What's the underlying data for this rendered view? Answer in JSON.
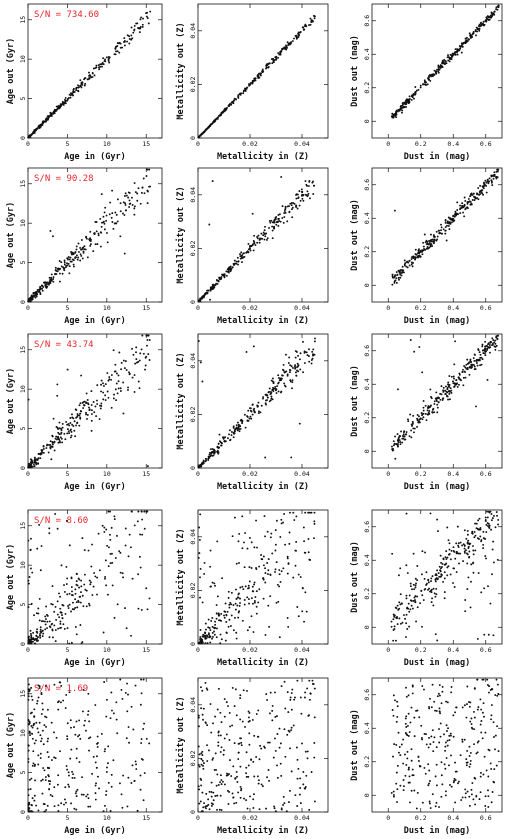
{
  "figure": {
    "rows": [
      {
        "sn_label": "S/N = 734.60",
        "noise": {
          "age": 0.1,
          "met": 0.05,
          "dust": 0.1
        },
        "outliers": 0.0
      },
      {
        "sn_label": "S/N = 90.28",
        "noise": {
          "age": 0.26,
          "met": 0.15,
          "dust": 0.17
        },
        "outliers": 0.02
      },
      {
        "sn_label": "S/N = 43.74",
        "noise": {
          "age": 0.36,
          "met": 0.22,
          "dust": 0.26
        },
        "outliers": 0.04
      },
      {
        "sn_label": "S/N = 8.60",
        "noise": {
          "age": 0.8,
          "met": 0.8,
          "dust": 0.55
        },
        "outliers": 0.25
      },
      {
        "sn_label": "S/N = 1.69",
        "noise": {
          "age": 1.0,
          "met": 1.0,
          "dust": 1.0
        },
        "outliers": 0.85
      }
    ],
    "columns": [
      {
        "key": "age",
        "xlabel": "Age in (Gyr)",
        "ylabel": "Age out (Gyr)",
        "xlim": [
          0,
          17
        ],
        "ylim": [
          0,
          17
        ],
        "xticks": [
          0,
          5,
          10,
          15
        ],
        "yticks": [
          0,
          5,
          10,
          15
        ],
        "xtick_labels": [
          "0",
          "5",
          "10",
          "15"
        ],
        "ytick_labels": [
          "0",
          "5",
          "10",
          "15"
        ]
      },
      {
        "key": "met",
        "xlabel": "Metallicity in (Z)",
        "ylabel": "Metallicity out (Z)",
        "xlim": [
          0,
          0.05
        ],
        "ylim": [
          0,
          0.05
        ],
        "xticks": [
          0,
          0.02,
          0.04
        ],
        "yticks": [
          0,
          0.02,
          0.04
        ],
        "xtick_labels": [
          "0",
          "0.02",
          "0.04"
        ],
        "ytick_labels": [
          "0",
          "0.02",
          "0.04"
        ]
      },
      {
        "key": "dust",
        "xlabel": "Dust in (mag)",
        "ylabel": "Dust out (mag)",
        "xlim": [
          -0.1,
          0.7
        ],
        "ylim": [
          -0.1,
          0.7
        ],
        "xticks": [
          0,
          0.2,
          0.4,
          0.6
        ],
        "yticks": [
          0,
          0.2,
          0.4,
          0.6
        ],
        "xtick_labels": [
          "0",
          "0.2",
          "0.4",
          "0.6"
        ],
        "ytick_labels": [
          "0",
          "0.2",
          "0.4",
          "0.6"
        ]
      }
    ]
  },
  "chart_data": [
    {
      "type": "scatter",
      "panel": "row1-age",
      "annotation": "S/N = 734.60",
      "xlabel": "Age in (Gyr)",
      "ylabel": "Age out (Gyr)",
      "xlim": [
        0,
        17
      ],
      "ylim": [
        0,
        17
      ],
      "points": 300,
      "trend": "y ≈ x, tight"
    },
    {
      "type": "scatter",
      "panel": "row1-metallicity",
      "xlabel": "Metallicity in (Z)",
      "ylabel": "Metallicity out (Z)",
      "xlim": [
        0,
        0.05
      ],
      "ylim": [
        0,
        0.05
      ],
      "points": 300,
      "trend": "y ≈ x, tight"
    },
    {
      "type": "scatter",
      "panel": "row1-dust",
      "xlabel": "Dust in (mag)",
      "ylabel": "Dust out (mag)",
      "xlim": [
        -0.1,
        0.7
      ],
      "ylim": [
        -0.1,
        0.7
      ],
      "points": 300,
      "trend": "y ≈ x, tight"
    },
    {
      "type": "scatter",
      "panel": "row2-age",
      "annotation": "S/N = 90.28",
      "xlabel": "Age in (Gyr)",
      "ylabel": "Age out (Gyr)",
      "xlim": [
        0,
        17
      ],
      "ylim": [
        0,
        17
      ],
      "points": 300,
      "trend": "y ≈ x, moderate scatter"
    },
    {
      "type": "scatter",
      "panel": "row2-metallicity",
      "xlabel": "Metallicity in (Z)",
      "ylabel": "Metallicity out (Z)",
      "xlim": [
        0,
        0.05
      ],
      "ylim": [
        0,
        0.05
      ],
      "points": 300,
      "trend": "y ≈ x, moderate scatter"
    },
    {
      "type": "scatter",
      "panel": "row2-dust",
      "xlabel": "Dust in (mag)",
      "ylabel": "Dust out (mag)",
      "xlim": [
        -0.1,
        0.7
      ],
      "ylim": [
        -0.1,
        0.7
      ],
      "points": 300,
      "trend": "y ≈ x, moderate scatter"
    },
    {
      "type": "scatter",
      "panel": "row3-age",
      "annotation": "S/N = 43.74",
      "xlabel": "Age in (Gyr)",
      "ylabel": "Age out (Gyr)",
      "xlim": [
        0,
        17
      ],
      "ylim": [
        0,
        17
      ],
      "points": 300,
      "trend": "y ≈ x, larger scatter"
    },
    {
      "type": "scatter",
      "panel": "row3-metallicity",
      "xlabel": "Metallicity in (Z)",
      "ylabel": "Metallicity out (Z)",
      "xlim": [
        0,
        0.05
      ],
      "ylim": [
        0,
        0.05
      ],
      "points": 300,
      "trend": "y ≈ x, larger scatter"
    },
    {
      "type": "scatter",
      "panel": "row3-dust",
      "xlabel": "Dust in (mag)",
      "ylabel": "Dust out (mag)",
      "xlim": [
        -0.1,
        0.7
      ],
      "ylim": [
        -0.1,
        0.7
      ],
      "points": 300,
      "trend": "y ≈ x, larger scatter"
    },
    {
      "type": "scatter",
      "panel": "row4-age",
      "annotation": "S/N = 8.60",
      "xlabel": "Age in (Gyr)",
      "ylabel": "Age out (Gyr)",
      "xlim": [
        0,
        17
      ],
      "ylim": [
        0,
        17
      ],
      "points": 300,
      "trend": "weak correlation"
    },
    {
      "type": "scatter",
      "panel": "row4-metallicity",
      "xlabel": "Metallicity in (Z)",
      "ylabel": "Metallicity out (Z)",
      "xlim": [
        0,
        0.05
      ],
      "ylim": [
        0,
        0.05
      ],
      "points": 300,
      "trend": "weak correlation"
    },
    {
      "type": "scatter",
      "panel": "row4-dust",
      "xlabel": "Dust in (mag)",
      "ylabel": "Dust out (mag)",
      "xlim": [
        -0.1,
        0.7
      ],
      "ylim": [
        -0.1,
        0.7
      ],
      "points": 300,
      "trend": "weak correlation"
    },
    {
      "type": "scatter",
      "panel": "row5-age",
      "annotation": "S/N = 1.69",
      "xlabel": "Age in (Gyr)",
      "ylabel": "Age out (Gyr)",
      "xlim": [
        0,
        17
      ],
      "ylim": [
        0,
        17
      ],
      "points": 300,
      "trend": "no correlation"
    },
    {
      "type": "scatter",
      "panel": "row5-metallicity",
      "xlabel": "Metallicity in (Z)",
      "ylabel": "Metallicity out (Z)",
      "xlim": [
        0,
        0.05
      ],
      "ylim": [
        0,
        0.05
      ],
      "points": 300,
      "trend": "no correlation"
    },
    {
      "type": "scatter",
      "panel": "row5-dust",
      "xlabel": "Dust in (mag)",
      "ylabel": "Dust out (mag)",
      "xlim": [
        -0.1,
        0.7
      ],
      "ylim": [
        -0.1,
        0.7
      ],
      "points": 300,
      "trend": "no correlation"
    }
  ]
}
